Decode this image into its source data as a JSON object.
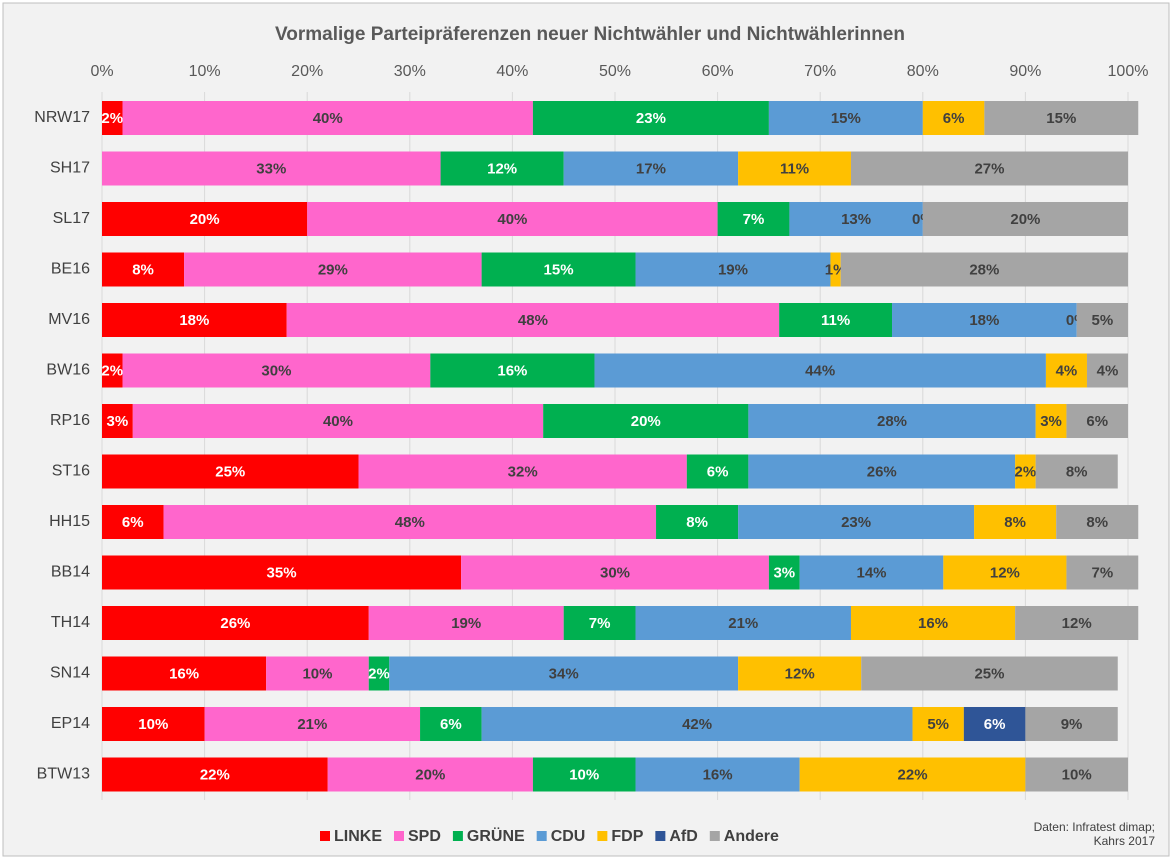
{
  "chart_data": {
    "type": "stacked-bar-horizontal",
    "title": "Vormalige Parteipräferenzen neuer Nichtwähler und Nichtwählerinnen",
    "categories": [
      "NRW17",
      "SH17",
      "SL17",
      "BE16",
      "MV16",
      "BW16",
      "RP16",
      "ST16",
      "HH15",
      "BB14",
      "TH14",
      "SN14",
      "EP14",
      "BTW13"
    ],
    "series": [
      {
        "name": "LINKE",
        "color": "#ff0000",
        "values": [
          2,
          null,
          20,
          8,
          18,
          2,
          3,
          25,
          6,
          35,
          26,
          16,
          10,
          22
        ],
        "value_labels": [
          "2%",
          null,
          "20%",
          "8%",
          "18%",
          "2%",
          "3%",
          "25%",
          "6%",
          "35%",
          "26%",
          "16%",
          "10%",
          "22%"
        ]
      },
      {
        "name": "SPD",
        "color": "#ff66cc",
        "values": [
          40,
          33,
          40,
          29,
          48,
          30,
          40,
          32,
          48,
          30,
          19,
          10,
          21,
          20
        ],
        "value_labels": [
          "40%",
          "33%",
          "40%",
          "29%",
          "48%",
          "30%",
          "40%",
          "32%",
          "48%",
          "30%",
          "19%",
          "10%",
          "21%",
          "20%"
        ]
      },
      {
        "name": "GRÜNE",
        "color": "#00b050",
        "values": [
          23,
          12,
          7,
          15,
          11,
          16,
          20,
          6,
          8,
          3,
          7,
          2,
          6,
          10
        ],
        "value_labels": [
          "23%",
          "12%",
          "7%",
          "15%",
          "11%",
          "16%",
          "20%",
          "6%",
          "8%",
          "3%",
          "7%",
          "2%",
          "6%",
          "10%"
        ]
      },
      {
        "name": "CDU",
        "color": "#5b9bd5",
        "values": [
          15,
          17,
          13,
          19,
          18,
          44,
          28,
          26,
          23,
          14,
          21,
          34,
          42,
          16
        ],
        "value_labels": [
          "15%",
          "17%",
          "13%",
          "19%",
          "18%",
          "44%",
          "28%",
          "26%",
          "23%",
          "14%",
          "21%",
          "34%",
          "42%",
          "16%"
        ]
      },
      {
        "name": "FDP",
        "color": "#ffc000",
        "values": [
          6,
          11,
          0,
          1,
          0,
          4,
          3,
          2,
          8,
          12,
          16,
          12,
          5,
          22
        ],
        "value_labels": [
          "6%",
          "11%",
          "0%",
          "1%",
          "0%",
          "4%",
          "3%",
          "2%",
          "8%",
          "12%",
          "16%",
          "12%",
          "5%",
          "22%"
        ]
      },
      {
        "name": "AfD",
        "color": "#2f5597",
        "values": [
          null,
          null,
          null,
          null,
          null,
          null,
          null,
          null,
          null,
          null,
          null,
          null,
          6,
          null
        ],
        "value_labels": [
          null,
          null,
          null,
          null,
          null,
          null,
          null,
          null,
          null,
          null,
          null,
          null,
          "6%",
          null
        ]
      },
      {
        "name": "Andere",
        "color": "#a5a5a5",
        "values": [
          15,
          27,
          20,
          28,
          5,
          4,
          6,
          8,
          8,
          7,
          12,
          25,
          9,
          10
        ],
        "value_labels": [
          "15%",
          "27%",
          "20%",
          "28%",
          "5%",
          "4%",
          "6%",
          "8%",
          "8%",
          "7%",
          "12%",
          "25%",
          "9%",
          "10%"
        ]
      }
    ],
    "xlim": [
      0,
      100
    ],
    "xticks": [
      {
        "value": 0,
        "label": "0%"
      },
      {
        "value": 10,
        "label": "10%"
      },
      {
        "value": 20,
        "label": "20%"
      },
      {
        "value": 30,
        "label": "30%"
      },
      {
        "value": 40,
        "label": "40%"
      },
      {
        "value": 50,
        "label": "50%"
      },
      {
        "value": 60,
        "label": "60%"
      },
      {
        "value": 70,
        "label": "70%"
      },
      {
        "value": 80,
        "label": "80%"
      },
      {
        "value": 90,
        "label": "90%"
      },
      {
        "value": 100,
        "label": "100%"
      }
    ],
    "grid": true,
    "legend": "bottom",
    "source": [
      "Daten: Infratest dimap;",
      "Kahrs 2017"
    ]
  }
}
